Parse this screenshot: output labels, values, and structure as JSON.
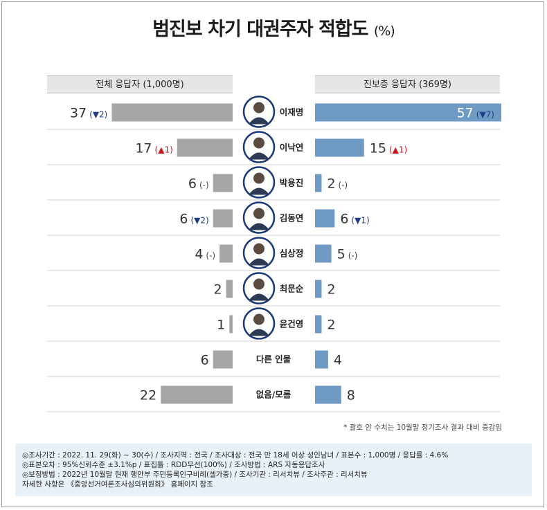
{
  "title": "범진보 차기 대권주자 적합도",
  "title_unit": "(%)",
  "chart_data": {
    "type": "bar",
    "categories": [
      "이재명",
      "이낙연",
      "박용진",
      "김동연",
      "심상정",
      "최문순",
      "윤건영",
      "다른 인물",
      "없음/모름"
    ],
    "series": [
      {
        "name": "전체 응답자 (1,000명)",
        "values": [
          37,
          17,
          6,
          6,
          4,
          2,
          1,
          6,
          22
        ],
        "changes": [
          "▼2",
          "▲1",
          "-",
          "▼2",
          "-",
          null,
          null,
          null,
          null
        ]
      },
      {
        "name": "진보층 응답자 (369명)",
        "values": [
          57,
          15,
          2,
          6,
          5,
          2,
          2,
          4,
          8
        ],
        "changes": [
          "▼7",
          "▲1",
          "-",
          "▼1",
          "-",
          null,
          null,
          null,
          null
        ]
      }
    ],
    "xlim": [
      0,
      57
    ],
    "colors": {
      "left_bar": "#a6a6a6",
      "right_bar": "#6f9ac4",
      "down": "#1f3b8a",
      "up": "#d0121b"
    },
    "photo_icons": [
      "이재명-photo-icon",
      "이낙연-photo-icon",
      "박용진-photo-icon",
      "김동연-photo-icon",
      "심상정-photo-icon",
      "최문순-photo-icon",
      "윤건영-photo-icon"
    ]
  },
  "note": "* 괄호 안 수치는 10월말 정기조사 결과 대비 증감임",
  "info": [
    "◎조사기간 : 2022. 11. 29(화) ~ 30(수) / 조사지역 : 전국 / 조사대상 : 전국 만 18세 이상 성인남녀 / 표본수 : 1,000명 / 응답률 : 4.6%",
    "◎표본오차 : 95%신뢰수준 ±3.1%p  / 표집틀 : RDD무선(100%) / 조사방법 : ARS 자동응답조사",
    "◎보정방법 : 2022년 10월말 현재 행안부 주민등록인구비례(셀가중) / 조사기관 : 리서치뷰 / 조사주관 : 리서치뷰",
    "자세한 사항은 《중앙선거여론조사심의위원회》 홈페이지 참조"
  ]
}
